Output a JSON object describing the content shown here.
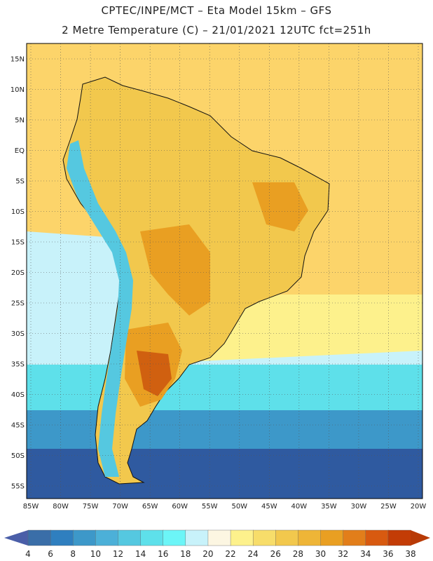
{
  "header": {
    "title_line1": "CPTEC/INPE/MCT –  Eta Model 15km – GFS",
    "title_line2": "2 Metre Temperature (C) – 21/01/2021 12UTC fct=251h"
  },
  "axes": {
    "lat_labels": [
      "15N",
      "10N",
      "5N",
      "EQ",
      "5S",
      "10S",
      "15S",
      "20S",
      "25S",
      "30S",
      "35S",
      "40S",
      "45S",
      "50S",
      "55S"
    ],
    "lon_labels": [
      "85W",
      "80W",
      "75W",
      "70W",
      "65W",
      "60W",
      "55W",
      "50W",
      "45W",
      "40W",
      "35W",
      "30W",
      "25W",
      "20W"
    ],
    "lat_range": [
      15,
      -55
    ],
    "lon_range": [
      -85,
      -20
    ],
    "grid": true
  },
  "colorbar": {
    "ticks": [
      "4",
      "6",
      "8",
      "10",
      "12",
      "14",
      "16",
      "18",
      "20",
      "22",
      "24",
      "26",
      "28",
      "30",
      "32",
      "34",
      "36",
      "38"
    ],
    "colors": [
      "#3a6ea8",
      "#2f7fbf",
      "#3d98c9",
      "#4cb0d8",
      "#55c8e0",
      "#5ee0ea",
      "#6cf5f7",
      "#c8f2fa",
      "#fcf6e2",
      "#fdf18c",
      "#f7dd6a",
      "#f2c84d",
      "#eeb537",
      "#e99f22",
      "#e27e1a",
      "#d85a10",
      "#c33c06"
    ],
    "low_color": "#4a5ea8",
    "high_color": "#b83a06"
  },
  "map_colors": {
    "ocean_warm": "#fcd46a",
    "ocean_mid": "#fdf18c",
    "ocean_cool": "#c8f2fa",
    "ocean_cold": "#5ee0ea",
    "ocean_colder": "#3d98c9",
    "ocean_coldest": "#2f5aa0",
    "land_warm": "#f2c84d",
    "land_hot": "#e99f22",
    "land_hottest": "#d06010",
    "andes_cold": "#55c8e0"
  }
}
